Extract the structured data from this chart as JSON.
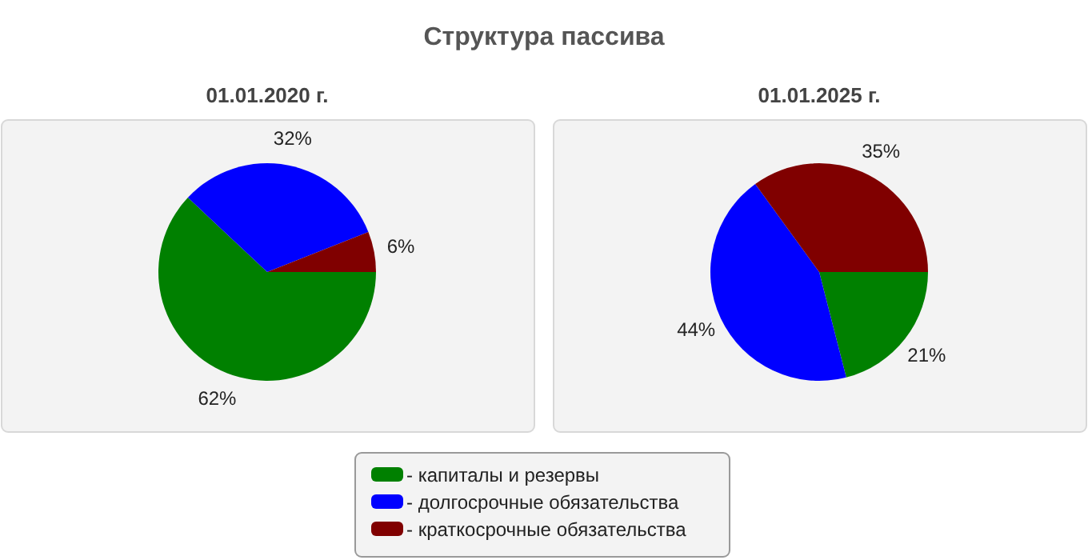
{
  "chart_data": [
    {
      "type": "pie",
      "title": "Структура пассива",
      "subtitle": "01.01.2020 г.",
      "categories": [
        "- капиталы и резервы",
        "- долгосрочные обязательства",
        "- краткосрочные обязательства"
      ],
      "values": [
        62,
        32,
        6
      ],
      "value_labels": [
        "62%",
        "32%",
        "6%"
      ],
      "colors": [
        "#008000",
        "#0000ff",
        "#800000"
      ],
      "legend": "bottom"
    },
    {
      "type": "pie",
      "subtitle": "01.01.2025 г.",
      "categories": [
        null,
        null,
        null
      ],
      "values": [
        21,
        44,
        35
      ],
      "value_labels": [
        "21%",
        "44%",
        "35%"
      ],
      "colors": [
        "#008000",
        "#0000ff",
        "#800000"
      ]
    }
  ]
}
